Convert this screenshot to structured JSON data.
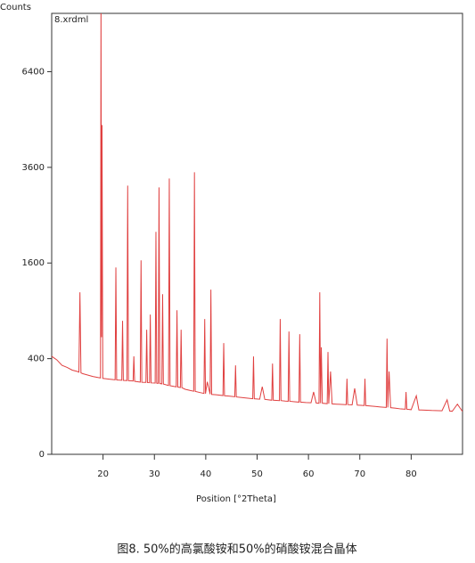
{
  "chart_data": {
    "type": "line",
    "y_label": "Counts",
    "x_label": "Position [°2Theta]",
    "legend": "8.xrdml",
    "caption": "图8. 50%的高氯酸铵和50%的硝酸铵混合晶体",
    "yscale": "sqrt",
    "color": "#e04040",
    "xlim": [
      10,
      90
    ],
    "xticks": [
      20,
      30,
      40,
      50,
      60,
      70,
      80
    ],
    "ylim": [
      0,
      8500
    ],
    "yticks": [
      0,
      400,
      1600,
      3600,
      6400
    ],
    "x": [
      10,
      11,
      12,
      13,
      14,
      15,
      15.3,
      15.5,
      15.7,
      16,
      17,
      18,
      19,
      19.5,
      19.6,
      19.7,
      19.8,
      19.95,
      20.5,
      21,
      22,
      22.35,
      22.5,
      22.65,
      23,
      23.65,
      23.8,
      23.95,
      24.65,
      24.8,
      24.95,
      25.5,
      25.85,
      26,
      26.15,
      27,
      27.25,
      27.4,
      27.55,
      28.35,
      28.5,
      28.65,
      29.05,
      29.2,
      29.35,
      30.15,
      30.3,
      30.45,
      30.75,
      30.9,
      31.05,
      31.45,
      31.6,
      31.75,
      32.75,
      32.9,
      33.05,
      34.25,
      34.4,
      34.55,
      35.05,
      35.2,
      35.35,
      36,
      37,
      37.65,
      37.8,
      37.95,
      39,
      39.65,
      39.8,
      39.95,
      40.3,
      40.85,
      41,
      41.15,
      42,
      43.35,
      43.5,
      43.65,
      44.5,
      45.65,
      45.8,
      45.95,
      47,
      48,
      49.15,
      49.3,
      49.45,
      50.5,
      51,
      51.5,
      52.85,
      53,
      53.15,
      54.35,
      54.5,
      54.65,
      55.5,
      56.05,
      56.2,
      56.35,
      57.3,
      58.15,
      58.3,
      58.45,
      59.5,
      60.5,
      61,
      61.5,
      62.05,
      62.2,
      62.35,
      62.5,
      62.7,
      63.65,
      63.8,
      63.95,
      64.3,
      64.6,
      65.5,
      66.5,
      67.35,
      67.5,
      67.65,
      68.5,
      69,
      69.5,
      70.85,
      71,
      71.15,
      72,
      73,
      74,
      75.15,
      75.3,
      75.45,
      75.7,
      76,
      77,
      78,
      78.85,
      79,
      79.15,
      80,
      81,
      81.5,
      82,
      84,
      86,
      87,
      87.5,
      88,
      89,
      90
    ],
    "values": [
      420,
      390,
      346,
      330,
      310,
      300,
      295,
      1147,
      290,
      285,
      275,
      265,
      258,
      255,
      9000,
      600,
      4740,
      252,
      250,
      248,
      244,
      243,
      1526,
      242,
      241,
      240,
      779,
      239,
      238,
      3157,
      237,
      236,
      235,
      420,
      233,
      229,
      228,
      1645,
      227,
      226,
      679,
      225,
      224,
      853,
      223,
      222,
      2163,
      221,
      220,
      3115,
      219,
      217,
      1121,
      216,
      207,
      3326,
      206,
      199,
      908,
      198,
      195,
      679,
      194,
      185,
      178,
      174,
      3478,
      173,
      166,
      162,
      800,
      161,
      230,
      158,
      1185,
      157,
      155,
      151,
      541,
      150,
      148,
      145,
      346,
      144,
      141,
      138,
      135,
      419,
      135,
      133,
      200,
      132,
      128,
      360,
      128,
      126,
      800,
      126,
      124,
      123,
      659,
      123,
      121,
      119,
      631,
      119,
      117,
      116,
      170,
      115,
      114,
      1147,
      114,
      500,
      114,
      112,
      458,
      112,
      300,
      111,
      110,
      109,
      108,
      250,
      108,
      107,
      190,
      106,
      104,
      250,
      104,
      102,
      100,
      98,
      96,
      585,
      96,
      300,
      95,
      93,
      90,
      89,
      170,
      89,
      87,
      150,
      86,
      86,
      84,
      83,
      130,
      82,
      81,
      110,
      80
    ]
  }
}
